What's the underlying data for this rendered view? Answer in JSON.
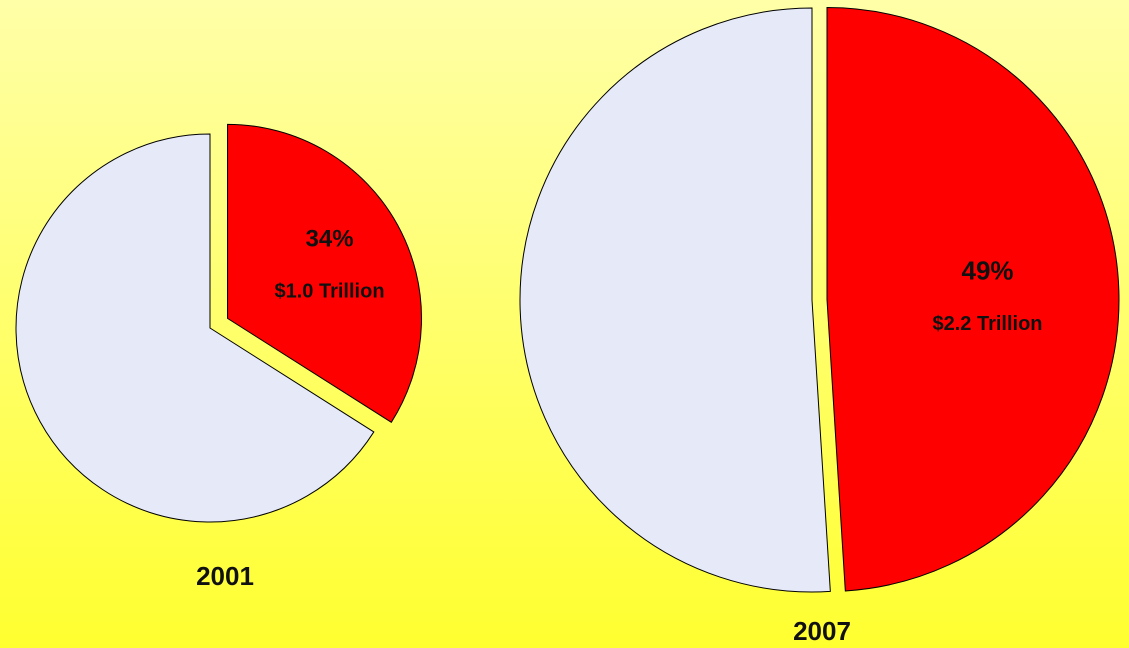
{
  "chart_data": [
    {
      "type": "pie",
      "title": "2001",
      "values": [
        34,
        66
      ],
      "value_labels": [
        "34%",
        null
      ],
      "annotation": "$1.0 Trillion",
      "colors": [
        "#ff0000",
        "#e6e9f7"
      ]
    },
    {
      "type": "pie",
      "title": "2007",
      "values": [
        49,
        51
      ],
      "value_labels": [
        "49%",
        null
      ],
      "annotation": "$2.2 Trillion",
      "colors": [
        "#ff0000",
        "#e6e9f7"
      ]
    }
  ]
}
